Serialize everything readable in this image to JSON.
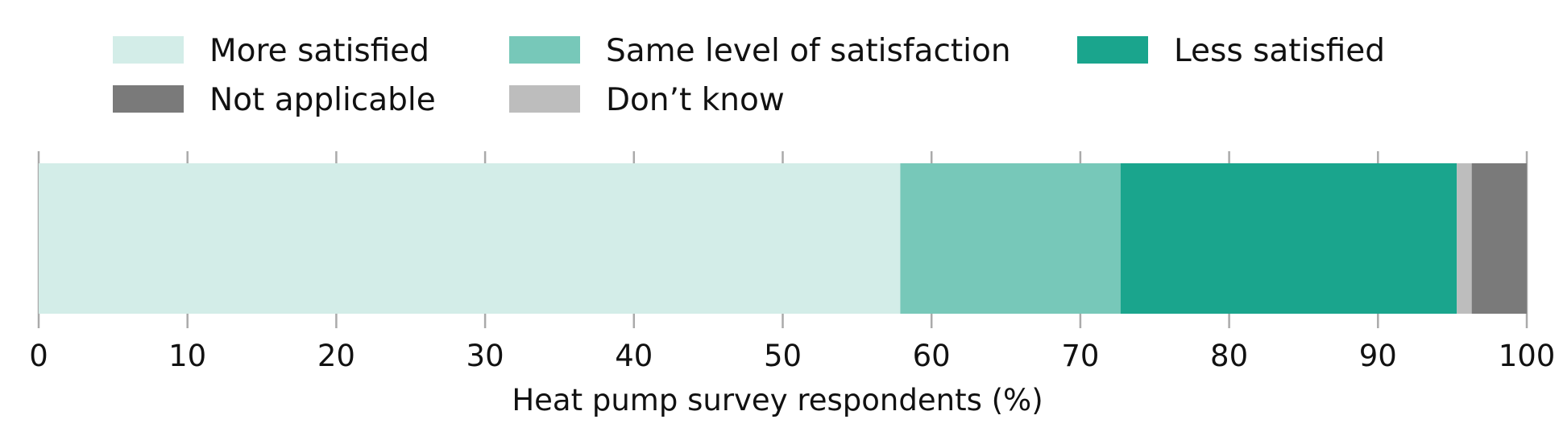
{
  "chart_data": {
    "type": "bar",
    "orientation": "horizontal",
    "stacked": true,
    "xlabel": "Heat pump survey respondents (%)",
    "ylabel": "",
    "xlim": [
      0,
      100
    ],
    "xticks": [
      0,
      10,
      20,
      30,
      40,
      50,
      60,
      70,
      80,
      90,
      100
    ],
    "grid": false,
    "legend_position": "top",
    "series": [
      {
        "name": "More satisfied",
        "values": [
          57.9
        ],
        "color": "#d3ede8"
      },
      {
        "name": "Same level of satisfaction",
        "values": [
          14.8
        ],
        "color": "#77c8b9"
      },
      {
        "name": "Less satisfied",
        "values": [
          22.6
        ],
        "color": "#1aa58d"
      },
      {
        "name": "Don’t know",
        "values": [
          1.0
        ],
        "color": "#bdbdbd"
      },
      {
        "name": "Not applicable",
        "values": [
          3.7
        ],
        "color": "#7a7a7a"
      }
    ],
    "legend_order": [
      "More satisfied",
      "Same level of satisfaction",
      "Less satisfied",
      "Not applicable",
      "Don’t know"
    ]
  }
}
